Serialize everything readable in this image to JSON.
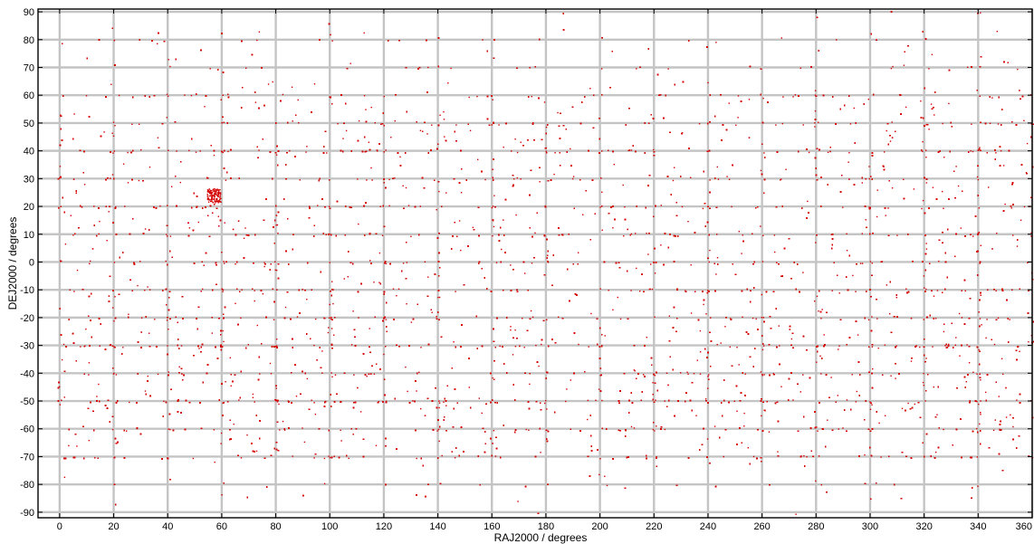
{
  "chart_data": {
    "type": "scatter",
    "xlabel": "RAJ2000 / degrees",
    "ylabel": "DEJ2000 / degrees",
    "xlim": [
      -8,
      360
    ],
    "ylim": [
      -92,
      91
    ],
    "xticks": [
      0,
      20,
      40,
      60,
      80,
      100,
      120,
      140,
      160,
      180,
      200,
      220,
      240,
      260,
      280,
      300,
      320,
      340,
      360
    ],
    "yticks": [
      90,
      80,
      70,
      60,
      50,
      40,
      30,
      20,
      10,
      0,
      -10,
      -20,
      -30,
      -40,
      -50,
      -60,
      -70,
      -80,
      -90
    ],
    "grid": true,
    "colors": {
      "points": "#d40000",
      "grid": "#c4c4c4",
      "frame": "#000000",
      "background": "#ffffff"
    },
    "series": [
      {
        "marker_color": "#d40000",
        "approx_point_count": 20000,
        "distribution": "dense all-sky scatter; sparser above dec 60 and below dec -75; points concentrate along integer-degree grid lines; visible clumps near RA 57 dec 24 and RA 0-10 dec 0-40",
        "sample_points": [
          [
            57,
            24
          ],
          [
            58,
            23
          ],
          [
            56,
            25
          ],
          [
            59,
            22
          ],
          [
            57,
            21
          ],
          [
            66,
            15
          ],
          [
            64,
            12
          ],
          [
            5,
            30
          ],
          [
            8,
            20
          ],
          [
            12,
            5
          ],
          [
            18,
            -12
          ],
          [
            30,
            -25
          ],
          [
            45,
            -40
          ],
          [
            62,
            -50
          ],
          [
            80,
            17
          ],
          [
            95,
            -35
          ],
          [
            110,
            -45
          ],
          [
            115,
            -40
          ],
          [
            120,
            -42
          ],
          [
            135,
            -55
          ],
          [
            140,
            -60
          ],
          [
            145,
            -68
          ],
          [
            160,
            -65
          ],
          [
            170,
            -30
          ],
          [
            185,
            35
          ],
          [
            200,
            -38
          ],
          [
            210,
            12
          ],
          [
            225,
            -44
          ],
          [
            240,
            -42
          ],
          [
            255,
            45
          ],
          [
            270,
            -24
          ],
          [
            285,
            40
          ],
          [
            292,
            30
          ],
          [
            300,
            31
          ],
          [
            308,
            45
          ],
          [
            315,
            -20
          ],
          [
            330,
            49
          ],
          [
            345,
            5
          ],
          [
            350,
            -45
          ],
          [
            355,
            62
          ],
          [
            20,
            80
          ],
          [
            100,
            82
          ],
          [
            300,
            -85
          ]
        ]
      }
    ]
  }
}
